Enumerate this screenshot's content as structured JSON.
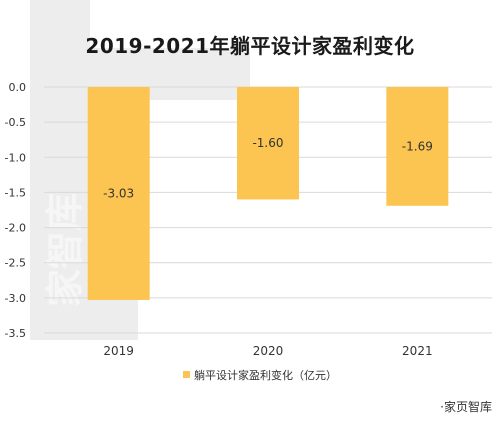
{
  "chart_data": {
    "type": "bar",
    "title": "2019-2021年躺平设计家盈利变化",
    "categories": [
      "2019",
      "2020",
      "2021"
    ],
    "series": [
      {
        "name": "躺平设计家盈利变化（亿元）",
        "values": [
          -3.03,
          -1.6,
          -1.69
        ]
      }
    ],
    "data_labels": [
      "-3.03",
      "-1.60",
      "-1.69"
    ],
    "y_ticks": [
      "0.0",
      "-0.5",
      "-1.0",
      "-1.5",
      "-2.0",
      "-2.5",
      "-3.0",
      "-3.5"
    ],
    "ylim": [
      -3.5,
      0
    ],
    "grid": true,
    "legend": "bottom",
    "xlabel": "",
    "ylabel": ""
  },
  "colors": {
    "bar": "#FCC552",
    "grid": "#D9D9D9",
    "watermark": "#EDEDED"
  },
  "watermark": "家智库",
  "source": "·家页智库"
}
